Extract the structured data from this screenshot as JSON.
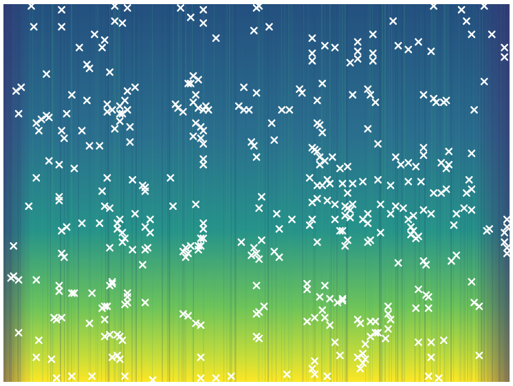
{
  "chart_data": {
    "type": "heatmap",
    "title": "",
    "xlabel": "",
    "ylabel": "",
    "axes_visible": false,
    "grid": false,
    "legend": "none",
    "colormap": [
      "#3b2a6e",
      "#2c4d8c",
      "#24798e",
      "#1f9a8a",
      "#3dbb73",
      "#8fd04a",
      "#fde725"
    ],
    "marker": {
      "shape": "x",
      "color": "#ffffff"
    },
    "xlim": [
      0,
      1
    ],
    "ylim": [
      0,
      1
    ],
    "points": [
      [
        0.055,
        0.995
      ],
      [
        0.115,
        0.985
      ],
      [
        0.22,
        0.995
      ],
      [
        0.245,
        0.99
      ],
      [
        0.35,
        0.99
      ],
      [
        0.395,
        0.985
      ],
      [
        0.5,
        0.99
      ],
      [
        0.505,
        0.995
      ],
      [
        0.85,
        0.995
      ],
      [
        0.95,
        0.995
      ],
      [
        0.905,
        0.985
      ],
      [
        0.06,
        0.94
      ],
      [
        0.115,
        0.94
      ],
      [
        0.22,
        0.955
      ],
      [
        0.235,
        0.95
      ],
      [
        0.37,
        0.965
      ],
      [
        0.395,
        0.95
      ],
      [
        0.495,
        0.93
      ],
      [
        0.525,
        0.94
      ],
      [
        0.77,
        0.955
      ],
      [
        0.915,
        0.955
      ],
      [
        0.925,
        0.92
      ],
      [
        0.965,
        0.92
      ],
      [
        0.18,
        0.92
      ],
      [
        0.2,
        0.905
      ],
      [
        0.15,
        0.885
      ],
      [
        0.195,
        0.885
      ],
      [
        0.42,
        0.91
      ],
      [
        0.61,
        0.91
      ],
      [
        0.635,
        0.89
      ],
      [
        0.655,
        0.885
      ],
      [
        0.7,
        0.9
      ],
      [
        0.73,
        0.92
      ],
      [
        0.8,
        0.88
      ],
      [
        0.82,
        0.9
      ],
      [
        0.845,
        0.875
      ],
      [
        0.61,
        0.87
      ],
      [
        0.61,
        0.85
      ],
      [
        0.7,
        0.875
      ],
      [
        0.7,
        0.855
      ],
      [
        0.685,
        0.845
      ],
      [
        0.73,
        0.87
      ],
      [
        0.73,
        0.85
      ],
      [
        0.78,
        0.89
      ],
      [
        0.99,
        0.885
      ],
      [
        0.99,
        0.86
      ],
      [
        0.165,
        0.84
      ],
      [
        0.17,
        0.83
      ],
      [
        0.085,
        0.815
      ],
      [
        0.21,
        0.82
      ],
      [
        0.375,
        0.81
      ],
      [
        0.37,
        0.79
      ],
      [
        0.385,
        0.8
      ],
      [
        0.025,
        0.77
      ],
      [
        0.035,
        0.78
      ],
      [
        0.245,
        0.77
      ],
      [
        0.26,
        0.78
      ],
      [
        0.365,
        0.79
      ],
      [
        0.38,
        0.76
      ],
      [
        0.475,
        0.78
      ],
      [
        0.5,
        0.765
      ],
      [
        0.585,
        0.775
      ],
      [
        0.59,
        0.765
      ],
      [
        0.63,
        0.79
      ],
      [
        0.69,
        0.76
      ],
      [
        0.72,
        0.775
      ],
      [
        0.725,
        0.76
      ],
      [
        0.83,
        0.76
      ],
      [
        0.85,
        0.75
      ],
      [
        0.875,
        0.745
      ],
      [
        0.95,
        0.795
      ],
      [
        0.135,
        0.76
      ],
      [
        0.165,
        0.745
      ],
      [
        0.24,
        0.745
      ],
      [
        0.205,
        0.735
      ],
      [
        0.23,
        0.73
      ],
      [
        0.34,
        0.735
      ],
      [
        0.375,
        0.74
      ],
      [
        0.385,
        0.725
      ],
      [
        0.395,
        0.72
      ],
      [
        0.465,
        0.73
      ],
      [
        0.475,
        0.72
      ],
      [
        0.62,
        0.745
      ],
      [
        0.735,
        0.74
      ],
      [
        0.855,
        0.74
      ],
      [
        0.87,
        0.74
      ],
      [
        0.03,
        0.71
      ],
      [
        0.09,
        0.7
      ],
      [
        0.125,
        0.71
      ],
      [
        0.205,
        0.715
      ],
      [
        0.215,
        0.72
      ],
      [
        0.23,
        0.71
      ],
      [
        0.235,
        0.71
      ],
      [
        0.245,
        0.72
      ],
      [
        0.345,
        0.725
      ],
      [
        0.355,
        0.715
      ],
      [
        0.4,
        0.73
      ],
      [
        0.405,
        0.72
      ],
      [
        0.485,
        0.72
      ],
      [
        0.55,
        0.72
      ],
      [
        0.565,
        0.72
      ],
      [
        0.93,
        0.72
      ],
      [
        0.065,
        0.685
      ],
      [
        0.075,
        0.695
      ],
      [
        0.085,
        0.705
      ],
      [
        0.07,
        0.665
      ],
      [
        0.115,
        0.665
      ],
      [
        0.12,
        0.645
      ],
      [
        0.155,
        0.665
      ],
      [
        0.23,
        0.69
      ],
      [
        0.22,
        0.67
      ],
      [
        0.25,
        0.675
      ],
      [
        0.38,
        0.685
      ],
      [
        0.39,
        0.675
      ],
      [
        0.395,
        0.665
      ],
      [
        0.53,
        0.685
      ],
      [
        0.62,
        0.685
      ],
      [
        0.625,
        0.68
      ],
      [
        0.63,
        0.66
      ],
      [
        0.72,
        0.67
      ],
      [
        0.17,
        0.625
      ],
      [
        0.19,
        0.625
      ],
      [
        0.25,
        0.635
      ],
      [
        0.375,
        0.65
      ],
      [
        0.39,
        0.645
      ],
      [
        0.395,
        0.63
      ],
      [
        0.49,
        0.635
      ],
      [
        0.495,
        0.625
      ],
      [
        0.535,
        0.64
      ],
      [
        0.61,
        0.62
      ],
      [
        0.615,
        0.615
      ],
      [
        0.62,
        0.61
      ],
      [
        0.635,
        0.585
      ],
      [
        0.625,
        0.575
      ],
      [
        0.665,
        0.565
      ],
      [
        0.74,
        0.63
      ],
      [
        0.83,
        0.62
      ],
      [
        0.83,
        0.6
      ],
      [
        0.88,
        0.61
      ],
      [
        0.925,
        0.605
      ],
      [
        0.09,
        0.585
      ],
      [
        0.11,
        0.575
      ],
      [
        0.14,
        0.565
      ],
      [
        0.395,
        0.59
      ],
      [
        0.395,
        0.575
      ],
      [
        0.5,
        0.595
      ],
      [
        0.625,
        0.595
      ],
      [
        0.65,
        0.595
      ],
      [
        0.68,
        0.57
      ],
      [
        0.775,
        0.595
      ],
      [
        0.785,
        0.575
      ],
      [
        0.8,
        0.58
      ],
      [
        0.815,
        0.57
      ],
      [
        0.88,
        0.575
      ],
      [
        0.865,
        0.58
      ],
      [
        0.875,
        0.565
      ],
      [
        0.065,
        0.54
      ],
      [
        0.205,
        0.54
      ],
      [
        0.255,
        0.535
      ],
      [
        0.33,
        0.54
      ],
      [
        0.605,
        0.54
      ],
      [
        0.64,
        0.535
      ],
      [
        0.67,
        0.525
      ],
      [
        0.69,
        0.525
      ],
      [
        0.71,
        0.53
      ],
      [
        0.74,
        0.535
      ],
      [
        0.765,
        0.52
      ],
      [
        0.8,
        0.53
      ],
      [
        0.825,
        0.53
      ],
      [
        0.92,
        0.535
      ],
      [
        0.195,
        0.505
      ],
      [
        0.28,
        0.505
      ],
      [
        0.275,
        0.52
      ],
      [
        0.28,
        0.515
      ],
      [
        0.62,
        0.52
      ],
      [
        0.63,
        0.52
      ],
      [
        0.645,
        0.525
      ],
      [
        0.68,
        0.5
      ],
      [
        0.85,
        0.5
      ],
      [
        0.865,
        0.5
      ],
      [
        0.875,
        0.51
      ],
      [
        0.915,
        0.5
      ],
      [
        0.925,
        0.51
      ],
      [
        0.2,
        0.465
      ],
      [
        0.21,
        0.46
      ],
      [
        0.335,
        0.465
      ],
      [
        0.38,
        0.47
      ],
      [
        0.61,
        0.475
      ],
      [
        0.62,
        0.485
      ],
      [
        0.64,
        0.48
      ],
      [
        0.655,
        0.47
      ],
      [
        0.69,
        0.47
      ],
      [
        0.745,
        0.47
      ],
      [
        0.775,
        0.465
      ],
      [
        0.79,
        0.46
      ],
      [
        0.83,
        0.455
      ],
      [
        0.91,
        0.46
      ],
      [
        0.11,
        0.49
      ],
      [
        0.26,
        0.445
      ],
      [
        0.51,
        0.49
      ],
      [
        0.505,
        0.46
      ],
      [
        0.54,
        0.445
      ],
      [
        0.72,
        0.445
      ],
      [
        0.765,
        0.445
      ],
      [
        0.81,
        0.44
      ],
      [
        0.895,
        0.445
      ],
      [
        0.925,
        0.455
      ],
      [
        0.05,
        0.465
      ],
      [
        0.115,
        0.4
      ],
      [
        0.125,
        0.41
      ],
      [
        0.225,
        0.42
      ],
      [
        0.225,
        0.405
      ],
      [
        0.235,
        0.395
      ],
      [
        0.11,
        0.48
      ],
      [
        0.24,
        0.38
      ],
      [
        0.235,
        0.37
      ],
      [
        0.29,
        0.43
      ],
      [
        0.395,
        0.42
      ],
      [
        0.395,
        0.405
      ],
      [
        0.545,
        0.405
      ],
      [
        0.605,
        0.415
      ],
      [
        0.61,
        0.43
      ],
      [
        0.665,
        0.4
      ],
      [
        0.67,
        0.4
      ],
      [
        0.675,
        0.465
      ],
      [
        0.68,
        0.46
      ],
      [
        0.685,
        0.455
      ],
      [
        0.72,
        0.42
      ],
      [
        0.805,
        0.41
      ],
      [
        0.805,
        0.39
      ],
      [
        0.81,
        0.4
      ],
      [
        0.815,
        0.38
      ],
      [
        0.845,
        0.445
      ],
      [
        0.89,
        0.415
      ],
      [
        0.995,
        0.43
      ],
      [
        0.995,
        0.41
      ],
      [
        0.99,
        0.395
      ],
      [
        0.155,
        0.42
      ],
      [
        0.19,
        0.42
      ],
      [
        0.23,
        0.43
      ],
      [
        0.28,
        0.41
      ],
      [
        0.29,
        0.395
      ],
      [
        0.57,
        0.43
      ],
      [
        0.685,
        0.435
      ],
      [
        0.655,
        0.43
      ],
      [
        0.675,
        0.44
      ],
      [
        0.71,
        0.43
      ],
      [
        0.745,
        0.395
      ],
      [
        0.8,
        0.43
      ],
      [
        0.82,
        0.385
      ],
      [
        0.96,
        0.405
      ],
      [
        0.02,
        0.36
      ],
      [
        0.115,
        0.34
      ],
      [
        0.12,
        0.33
      ],
      [
        0.21,
        0.355
      ],
      [
        0.28,
        0.35
      ],
      [
        0.36,
        0.355
      ],
      [
        0.365,
        0.34
      ],
      [
        0.37,
        0.36
      ],
      [
        0.385,
        0.36
      ],
      [
        0.39,
        0.36
      ],
      [
        0.47,
        0.37
      ],
      [
        0.51,
        0.375
      ],
      [
        0.62,
        0.37
      ],
      [
        0.675,
        0.36
      ],
      [
        0.68,
        0.375
      ],
      [
        0.72,
        0.37
      ],
      [
        0.725,
        0.375
      ],
      [
        0.895,
        0.335
      ],
      [
        0.955,
        0.4
      ],
      [
        0.99,
        0.37
      ],
      [
        0.995,
        0.355
      ],
      [
        0.255,
        0.35
      ],
      [
        0.275,
        0.31
      ],
      [
        0.285,
        0.355
      ],
      [
        0.355,
        0.345
      ],
      [
        0.36,
        0.33
      ],
      [
        0.385,
        0.35
      ],
      [
        0.39,
        0.38
      ],
      [
        0.395,
        0.38
      ],
      [
        0.49,
        0.335
      ],
      [
        0.495,
        0.355
      ],
      [
        0.5,
        0.34
      ],
      [
        0.505,
        0.325
      ],
      [
        0.535,
        0.345
      ],
      [
        0.545,
        0.33
      ],
      [
        0.78,
        0.315
      ],
      [
        0.83,
        0.32
      ],
      [
        0.835,
        0.31
      ],
      [
        0.885,
        0.32
      ],
      [
        0.995,
        0.34
      ],
      [
        0.02,
        0.28
      ],
      [
        0.015,
        0.275
      ],
      [
        0.03,
        0.27
      ],
      [
        0.065,
        0.27
      ],
      [
        0.11,
        0.255
      ],
      [
        0.11,
        0.24
      ],
      [
        0.135,
        0.235
      ],
      [
        0.14,
        0.235
      ],
      [
        0.175,
        0.235
      ],
      [
        0.21,
        0.255
      ],
      [
        0.215,
        0.26
      ],
      [
        0.215,
        0.265
      ],
      [
        0.245,
        0.235
      ],
      [
        0.245,
        0.225
      ],
      [
        0.5,
        0.255
      ],
      [
        0.6,
        0.26
      ],
      [
        0.6,
        0.245
      ],
      [
        0.625,
        0.225
      ],
      [
        0.635,
        0.255
      ],
      [
        0.645,
        0.22
      ],
      [
        0.67,
        0.215
      ],
      [
        0.67,
        0.22
      ],
      [
        0.82,
        0.245
      ],
      [
        0.835,
        0.23
      ],
      [
        0.84,
        0.225
      ],
      [
        0.925,
        0.265
      ],
      [
        0.93,
        0.21
      ],
      [
        0.24,
        0.205
      ],
      [
        0.205,
        0.2
      ],
      [
        0.195,
        0.195
      ],
      [
        0.2,
        0.2
      ],
      [
        0.245,
        0.21
      ],
      [
        0.28,
        0.21
      ],
      [
        0.505,
        0.185
      ],
      [
        0.5,
        0.18
      ],
      [
        0.515,
        0.2
      ],
      [
        0.63,
        0.19
      ],
      [
        0.635,
        0.17
      ],
      [
        0.66,
        0.21
      ],
      [
        0.76,
        0.2
      ],
      [
        0.76,
        0.18
      ],
      [
        0.815,
        0.195
      ],
      [
        0.84,
        0.195
      ],
      [
        0.94,
        0.2
      ],
      [
        0.1,
        0.17
      ],
      [
        0.105,
        0.165
      ],
      [
        0.115,
        0.17
      ],
      [
        0.17,
        0.155
      ],
      [
        0.2,
        0.165
      ],
      [
        0.355,
        0.18
      ],
      [
        0.365,
        0.175
      ],
      [
        0.38,
        0.155
      ],
      [
        0.39,
        0.15
      ],
      [
        0.6,
        0.16
      ],
      [
        0.615,
        0.17
      ],
      [
        0.645,
        0.15
      ],
      [
        0.7,
        0.165
      ],
      [
        0.705,
        0.155
      ],
      [
        0.725,
        0.16
      ],
      [
        0.735,
        0.16
      ],
      [
        0.765,
        0.165
      ],
      [
        0.76,
        0.14
      ],
      [
        0.03,
        0.13
      ],
      [
        0.07,
        0.11
      ],
      [
        0.2,
        0.12
      ],
      [
        0.21,
        0.125
      ],
      [
        0.225,
        0.125
      ],
      [
        0.23,
        0.12
      ],
      [
        0.235,
        0.11
      ],
      [
        0.5,
        0.12
      ],
      [
        0.505,
        0.115
      ],
      [
        0.655,
        0.105
      ],
      [
        0.715,
        0.1
      ],
      [
        0.725,
        0.12
      ],
      [
        0.735,
        0.13
      ],
      [
        0.74,
        0.13
      ],
      [
        0.755,
        0.115
      ],
      [
        0.82,
        0.105
      ],
      [
        0.845,
        0.105
      ],
      [
        0.87,
        0.11
      ],
      [
        0.065,
        0.065
      ],
      [
        0.095,
        0.06
      ],
      [
        0.215,
        0.065
      ],
      [
        0.225,
        0.07
      ],
      [
        0.23,
        0.06
      ],
      [
        0.39,
        0.065
      ],
      [
        0.615,
        0.055
      ],
      [
        0.665,
        0.07
      ],
      [
        0.7,
        0.065
      ],
      [
        0.71,
        0.075
      ],
      [
        0.715,
        0.06
      ],
      [
        0.71,
        0.05
      ],
      [
        0.845,
        0.065
      ],
      [
        0.94,
        0.07
      ],
      [
        0.105,
        0.01
      ],
      [
        0.135,
        0.015
      ],
      [
        0.175,
        0.015
      ],
      [
        0.24,
        0.015
      ],
      [
        0.295,
        0.005
      ],
      [
        0.39,
        0.01
      ],
      [
        0.42,
        0.01
      ],
      [
        0.45,
        0.015
      ],
      [
        0.56,
        0.02
      ],
      [
        0.61,
        0.035
      ],
      [
        0.615,
        0.02
      ],
      [
        0.64,
        0.015
      ],
      [
        0.705,
        0.035
      ],
      [
        0.84,
        0.015
      ],
      [
        0.86,
        0.01
      ]
    ]
  }
}
